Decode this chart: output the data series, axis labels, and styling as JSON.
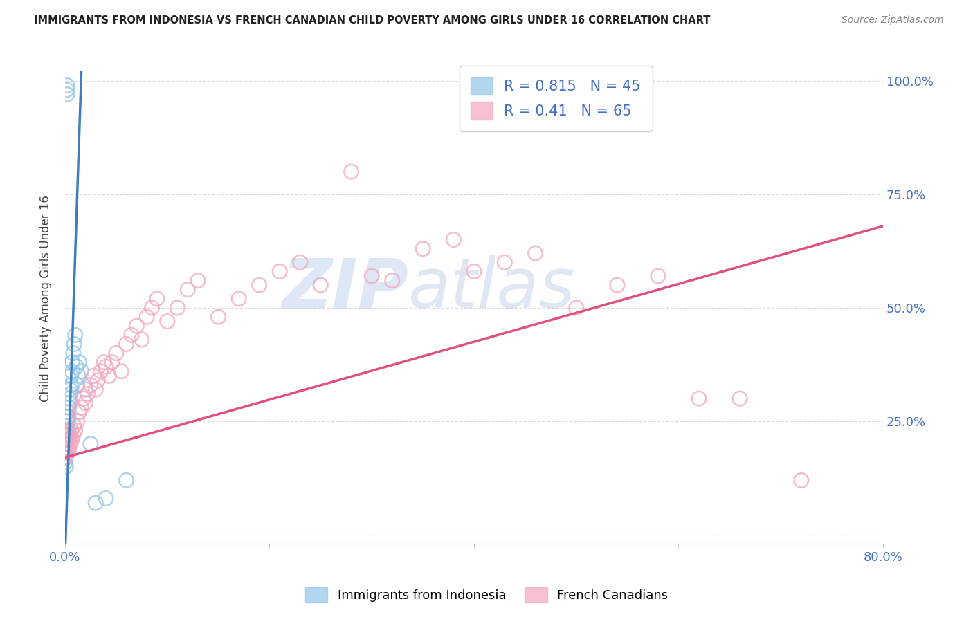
{
  "title": "IMMIGRANTS FROM INDONESIA VS FRENCH CANADIAN CHILD POVERTY AMONG GIRLS UNDER 16 CORRELATION CHART",
  "source": "Source: ZipAtlas.com",
  "ylabel": "Child Poverty Among Girls Under 16",
  "legend_labels": [
    "Immigrants from Indonesia",
    "French Canadians"
  ],
  "legend_R": [
    0.815,
    0.41
  ],
  "legend_N": [
    45,
    65
  ],
  "blue_color": "#92c5e8",
  "pink_color": "#f4a6bc",
  "blue_line_color": "#3d7ebd",
  "pink_line_color": "#e05080",
  "title_color": "#222222",
  "source_color": "#888888",
  "axis_label_color": "#4472c4",
  "background_color": "#ffffff",
  "xlim": [
    0.0,
    0.8
  ],
  "ylim": [
    -0.02,
    1.06
  ],
  "watermark_color": "#c8d8f0",
  "blue_x": [
    0.0005,
    0.0006,
    0.0007,
    0.0008,
    0.0009,
    0.001,
    0.001,
    0.001,
    0.001,
    0.0012,
    0.0013,
    0.0014,
    0.0015,
    0.0016,
    0.0017,
    0.0018,
    0.002,
    0.002,
    0.0022,
    0.0025,
    0.003,
    0.003,
    0.0035,
    0.004,
    0.004,
    0.0045,
    0.005,
    0.005,
    0.006,
    0.006,
    0.007,
    0.007,
    0.008,
    0.009,
    0.01,
    0.011,
    0.012,
    0.013,
    0.014,
    0.016,
    0.02,
    0.025,
    0.03,
    0.04,
    0.06
  ],
  "blue_y": [
    0.16,
    0.18,
    0.17,
    0.19,
    0.15,
    0.2,
    0.18,
    0.22,
    0.21,
    0.2,
    0.22,
    0.21,
    0.23,
    0.24,
    0.22,
    0.98,
    0.99,
    0.97,
    0.26,
    0.27,
    0.25,
    0.23,
    0.26,
    0.28,
    0.3,
    0.29,
    0.32,
    0.31,
    0.35,
    0.33,
    0.36,
    0.38,
    0.4,
    0.42,
    0.44,
    0.37,
    0.33,
    0.35,
    0.38,
    0.36,
    0.32,
    0.2,
    0.07,
    0.08,
    0.12
  ],
  "pink_x": [
    0.0005,
    0.001,
    0.001,
    0.0015,
    0.002,
    0.002,
    0.003,
    0.003,
    0.004,
    0.004,
    0.005,
    0.005,
    0.006,
    0.007,
    0.008,
    0.009,
    0.01,
    0.012,
    0.014,
    0.016,
    0.018,
    0.02,
    0.022,
    0.025,
    0.028,
    0.03,
    0.032,
    0.035,
    0.038,
    0.04,
    0.043,
    0.046,
    0.05,
    0.055,
    0.06,
    0.065,
    0.07,
    0.075,
    0.08,
    0.085,
    0.09,
    0.1,
    0.11,
    0.12,
    0.13,
    0.15,
    0.17,
    0.19,
    0.21,
    0.23,
    0.25,
    0.28,
    0.3,
    0.32,
    0.35,
    0.38,
    0.4,
    0.43,
    0.46,
    0.5,
    0.54,
    0.58,
    0.62,
    0.66,
    0.72
  ],
  "pink_y": [
    0.17,
    0.18,
    0.2,
    0.19,
    0.21,
    0.18,
    0.2,
    0.22,
    0.21,
    0.19,
    0.2,
    0.22,
    0.23,
    0.21,
    0.22,
    0.24,
    0.23,
    0.25,
    0.27,
    0.28,
    0.3,
    0.29,
    0.31,
    0.33,
    0.35,
    0.32,
    0.34,
    0.36,
    0.38,
    0.37,
    0.35,
    0.38,
    0.4,
    0.36,
    0.42,
    0.44,
    0.46,
    0.43,
    0.48,
    0.5,
    0.52,
    0.47,
    0.5,
    0.54,
    0.56,
    0.48,
    0.52,
    0.55,
    0.58,
    0.6,
    0.55,
    0.8,
    0.57,
    0.56,
    0.63,
    0.65,
    0.58,
    0.6,
    0.62,
    0.5,
    0.55,
    0.57,
    0.3,
    0.3,
    0.12
  ],
  "blue_line_x": [
    0.0,
    0.016
  ],
  "blue_line_y": [
    -0.05,
    1.02
  ],
  "pink_line_x": [
    0.0,
    0.8
  ],
  "pink_line_y": [
    0.17,
    0.68
  ]
}
